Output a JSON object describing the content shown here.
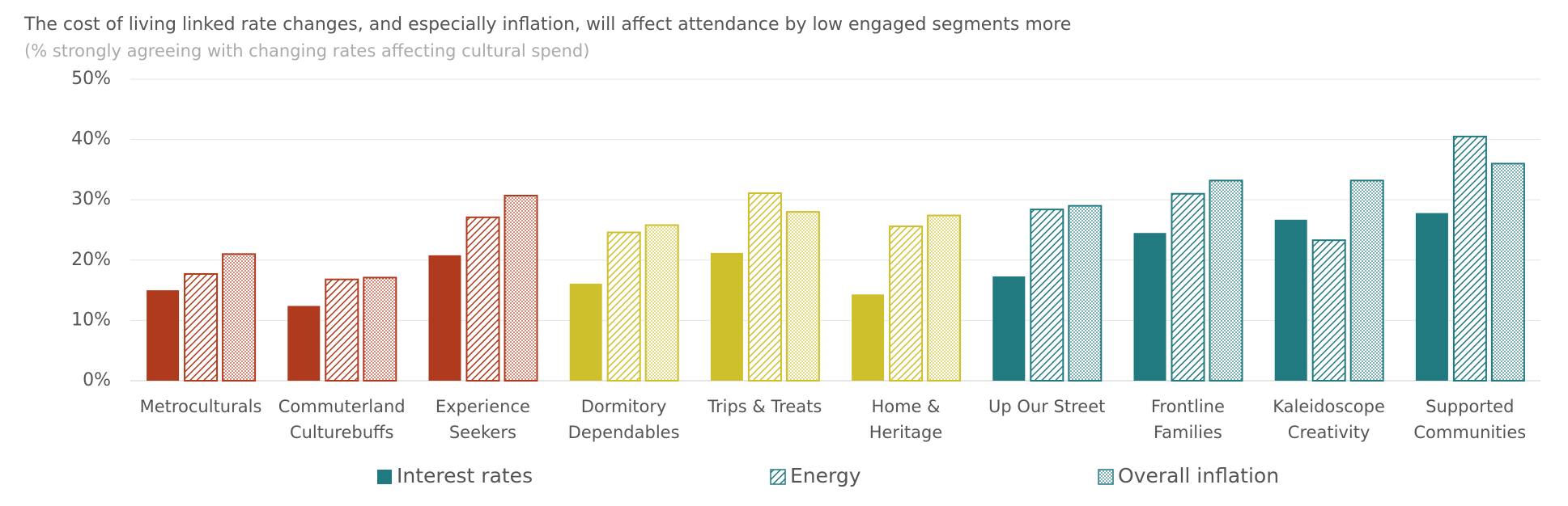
{
  "chart_data": {
    "type": "bar",
    "title": "The cost of living linked rate changes, and especially inflation, will affect attendance by low engaged segments more",
    "subtitle": "(% strongly agreeing with changing rates affecting cultural spend)",
    "categories": [
      "Metroculturals",
      "Commuterland\nCulturebuffs",
      "Experience\nSeekers",
      "Dormitory\nDependables",
      "Trips & Treats",
      "Home &\nHeritage",
      "Up Our Street",
      "Frontline\nFamilies",
      "Kaleidoscope\nCreativity",
      "Supported\nCommunities"
    ],
    "category_colors": [
      "#b03a1e",
      "#b03a1e",
      "#b03a1e",
      "#cdc02c",
      "#cdc02c",
      "#cdc02c",
      "#217a80",
      "#217a80",
      "#217a80",
      "#217a80"
    ],
    "legend_color": "#217a80",
    "series": [
      {
        "name": "Interest rates",
        "pattern": "solid",
        "values": [
          15,
          12.4,
          20.8,
          16.1,
          21.2,
          14.3,
          17.3,
          24.5,
          26.7,
          27.8
        ]
      },
      {
        "name": "Energy",
        "pattern": "hatch",
        "values": [
          17.7,
          16.8,
          27.1,
          24.6,
          31.1,
          25.6,
          28.4,
          31,
          23.3,
          40.5
        ]
      },
      {
        "name": "Overall inflation",
        "pattern": "dots",
        "values": [
          21,
          17.1,
          30.7,
          25.8,
          28,
          27.4,
          29,
          33.2,
          33.2,
          36
        ]
      }
    ],
    "ylim": [
      0,
      50
    ],
    "yticks": [
      {
        "value": 0,
        "label": "0%"
      },
      {
        "value": 10,
        "label": "10%"
      },
      {
        "value": 20,
        "label": "20%"
      },
      {
        "value": 30,
        "label": "30%"
      },
      {
        "value": 40,
        "label": "40%"
      },
      {
        "value": 50,
        "label": "50%"
      }
    ],
    "grid": true
  }
}
